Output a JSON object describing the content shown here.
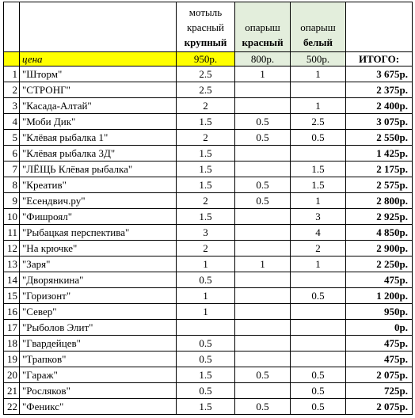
{
  "headers": {
    "col_a_line1": "мотыль",
    "col_a_line2": "красный",
    "col_a_line3": "крупный",
    "col_b_line1": "опарыш",
    "col_b_line2": "красный",
    "col_c_line1": "опарыш",
    "col_c_line2": "белый"
  },
  "price_row": {
    "label": "цена",
    "col_a": "950р.",
    "col_b": "800р.",
    "col_c": "500р.",
    "total_label": "ИТОГО:"
  },
  "colors": {
    "price_highlight": "#ffff00",
    "green_column": "#e3eedc"
  },
  "rows": [
    {
      "n": "1",
      "name": "\"Шторм\"",
      "a": "2.5",
      "b": "1",
      "c": "1",
      "total": "3 675р."
    },
    {
      "n": "2",
      "name": "\"СТРОНГ\"",
      "a": "2.5",
      "b": "",
      "c": "",
      "total": "2 375р."
    },
    {
      "n": "3",
      "name": "\"Касада-Алтай\"",
      "a": "2",
      "b": "",
      "c": "1",
      "total": "2 400р."
    },
    {
      "n": "4",
      "name": "\"Моби Дик\"",
      "a": "1.5",
      "b": "0.5",
      "c": "2.5",
      "total": "3 075р."
    },
    {
      "n": "5",
      "name": "\"Клёвая рыбалка 1\"",
      "a": "2",
      "b": "0.5",
      "c": "0.5",
      "total": "2 550р."
    },
    {
      "n": "6",
      "name": "\"Клёвая рыбалка 3Д\"",
      "a": "1.5",
      "b": "",
      "c": "",
      "total": "1 425р."
    },
    {
      "n": "7",
      "name": "\"ЛЁЩЬ Клёвая рыбалка\"",
      "a": "1.5",
      "b": "",
      "c": "1.5",
      "total": "2 175р."
    },
    {
      "n": "8",
      "name": "\"Креатив\"",
      "a": "1.5",
      "b": "0.5",
      "c": "1.5",
      "total": "2 575р."
    },
    {
      "n": "9",
      "name": "\"Есендвич.ру\"",
      "a": "2",
      "b": "0.5",
      "c": "1",
      "total": "2 800р."
    },
    {
      "n": "10",
      "name": "\"Фишроял\"",
      "a": "1.5",
      "b": "",
      "c": "3",
      "total": "2 925р."
    },
    {
      "n": "11",
      "name": "\"Рыбацкая перспектива\"",
      "a": "3",
      "b": "",
      "c": "4",
      "total": "4 850р."
    },
    {
      "n": "12",
      "name": "\"На крючке\"",
      "a": "2",
      "b": "",
      "c": "2",
      "total": "2 900р."
    },
    {
      "n": "13",
      "name": "\"Заря\"",
      "a": "1",
      "b": "1",
      "c": "1",
      "total": "2 250р."
    },
    {
      "n": "14",
      "name": "\"Дворянкина\"",
      "a": "0.5",
      "b": "",
      "c": "",
      "total": "475р."
    },
    {
      "n": "15",
      "name": "\"Горизонт\"",
      "a": "1",
      "b": "",
      "c": "0.5",
      "total": "1 200р."
    },
    {
      "n": "16",
      "name": "\"Север\"",
      "a": "1",
      "b": "",
      "c": "",
      "total": "950р."
    },
    {
      "n": "17",
      "name": "\"Рыболов Элит\"",
      "a": "",
      "b": "",
      "c": "",
      "total": "0р."
    },
    {
      "n": "18",
      "name": "\"Гвардейцев\"",
      "a": "0.5",
      "b": "",
      "c": "",
      "total": "475р."
    },
    {
      "n": "19",
      "name": "\"Трапков\"",
      "a": "0.5",
      "b": "",
      "c": "",
      "total": "475р."
    },
    {
      "n": "20",
      "name": "\"Гараж\"",
      "a": "1.5",
      "b": "0.5",
      "c": "0.5",
      "total": "2 075р."
    },
    {
      "n": "21",
      "name": "\"Росляков\"",
      "a": "0.5",
      "b": "",
      "c": "0.5",
      "total": "725р."
    },
    {
      "n": "22",
      "name": "\"Феникс\"",
      "a": "1.5",
      "b": "0.5",
      "c": "0.5",
      "total": "2 075р."
    }
  ]
}
